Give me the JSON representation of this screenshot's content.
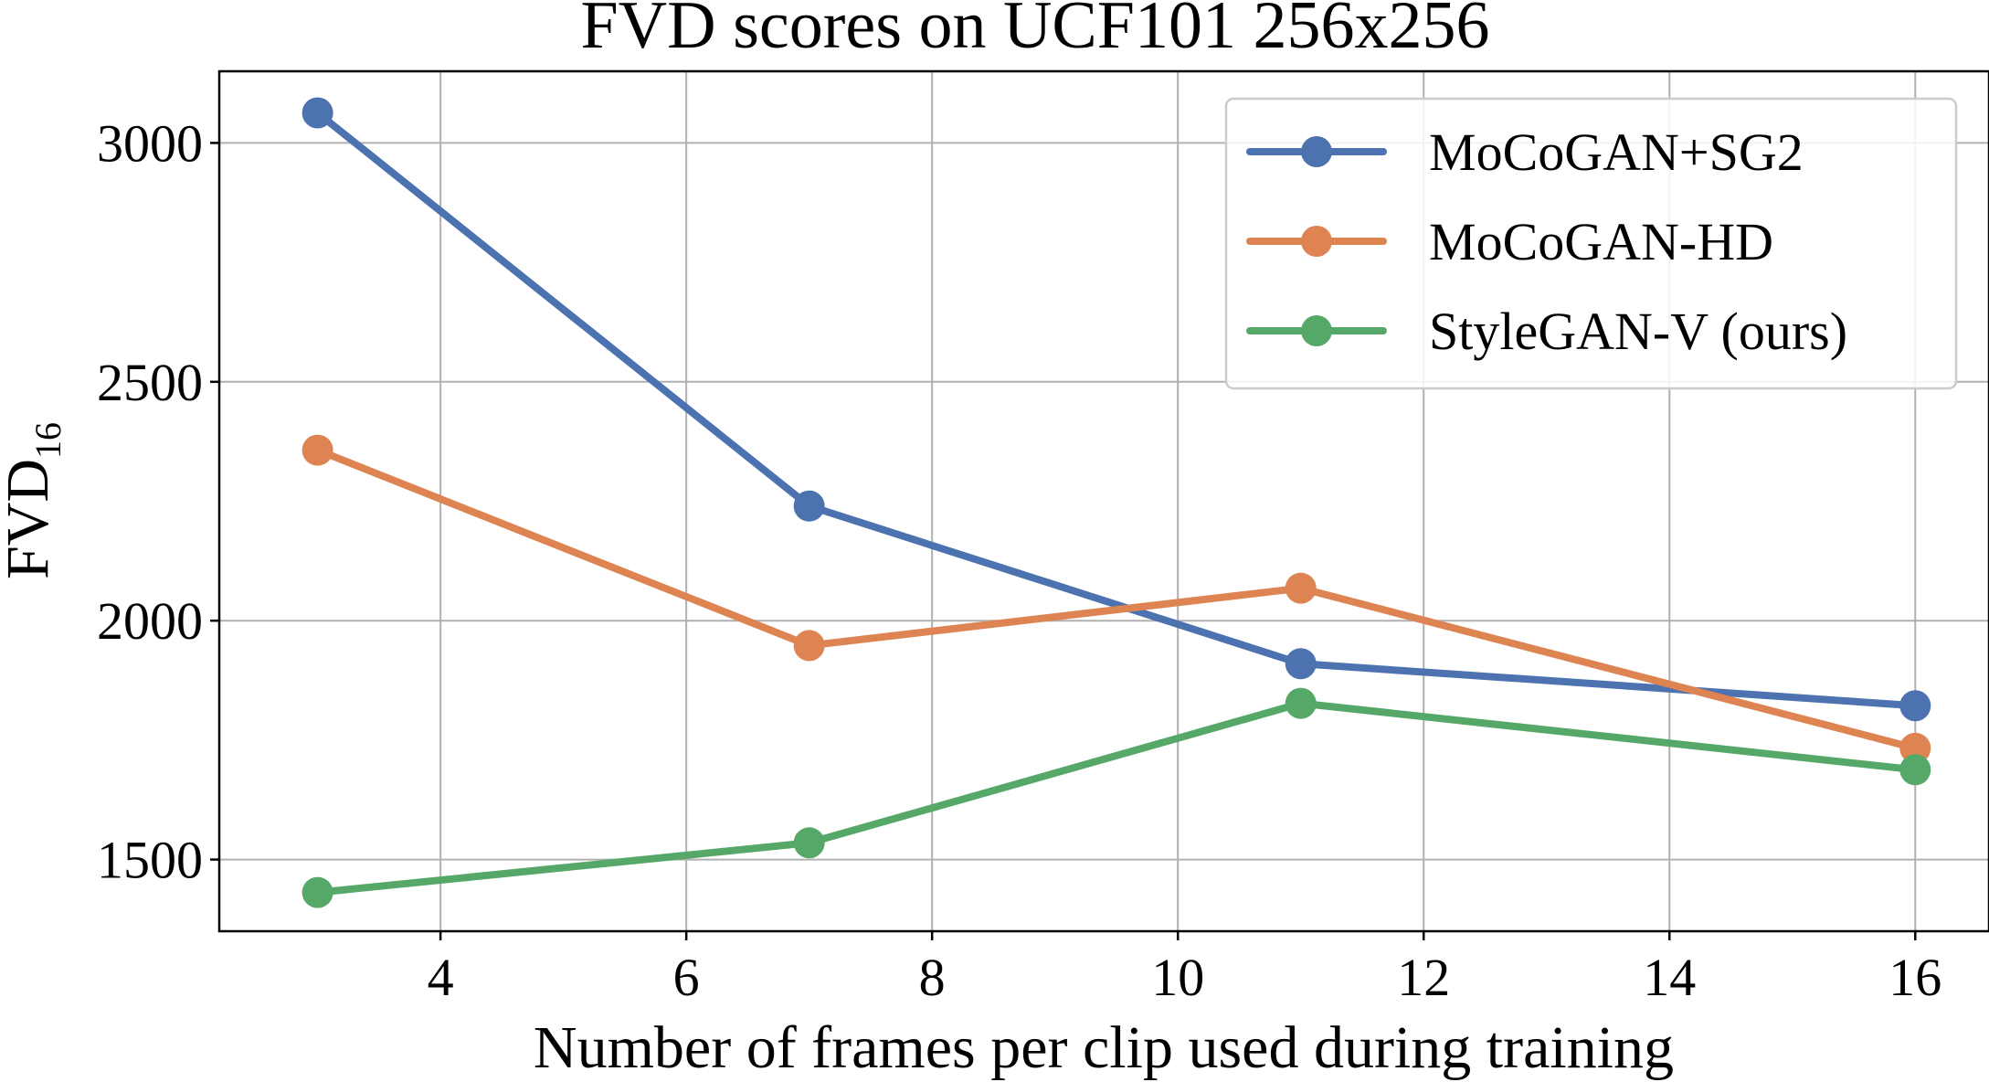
{
  "chart_data": {
    "type": "line",
    "title": "FVD scores on UCF101 256x256",
    "xlabel": "Number of frames per clip used during training",
    "ylabel_main": "FVD",
    "ylabel_subscript": "16",
    "xlim": [
      2.2,
      16.6
    ],
    "ylim": [
      1350,
      3150
    ],
    "xticks": [
      4,
      6,
      8,
      10,
      12,
      14,
      16
    ],
    "yticks": [
      1500,
      2000,
      2500,
      3000
    ],
    "x": [
      3,
      7,
      11,
      16
    ],
    "grid": true,
    "legend_position": "top-right",
    "series": [
      {
        "name": "MoCoGAN+SG2",
        "color": "#4c72b0",
        "values": [
          3063,
          2240,
          1910,
          1822
        ]
      },
      {
        "name": "MoCoGAN-HD",
        "color": "#dd8452",
        "values": [
          2357,
          1948,
          2068,
          1733
        ]
      },
      {
        "name": "StyleGAN-V (ours)",
        "color": "#55a868",
        "values": [
          1431,
          1535,
          1827,
          1688
        ]
      }
    ]
  }
}
